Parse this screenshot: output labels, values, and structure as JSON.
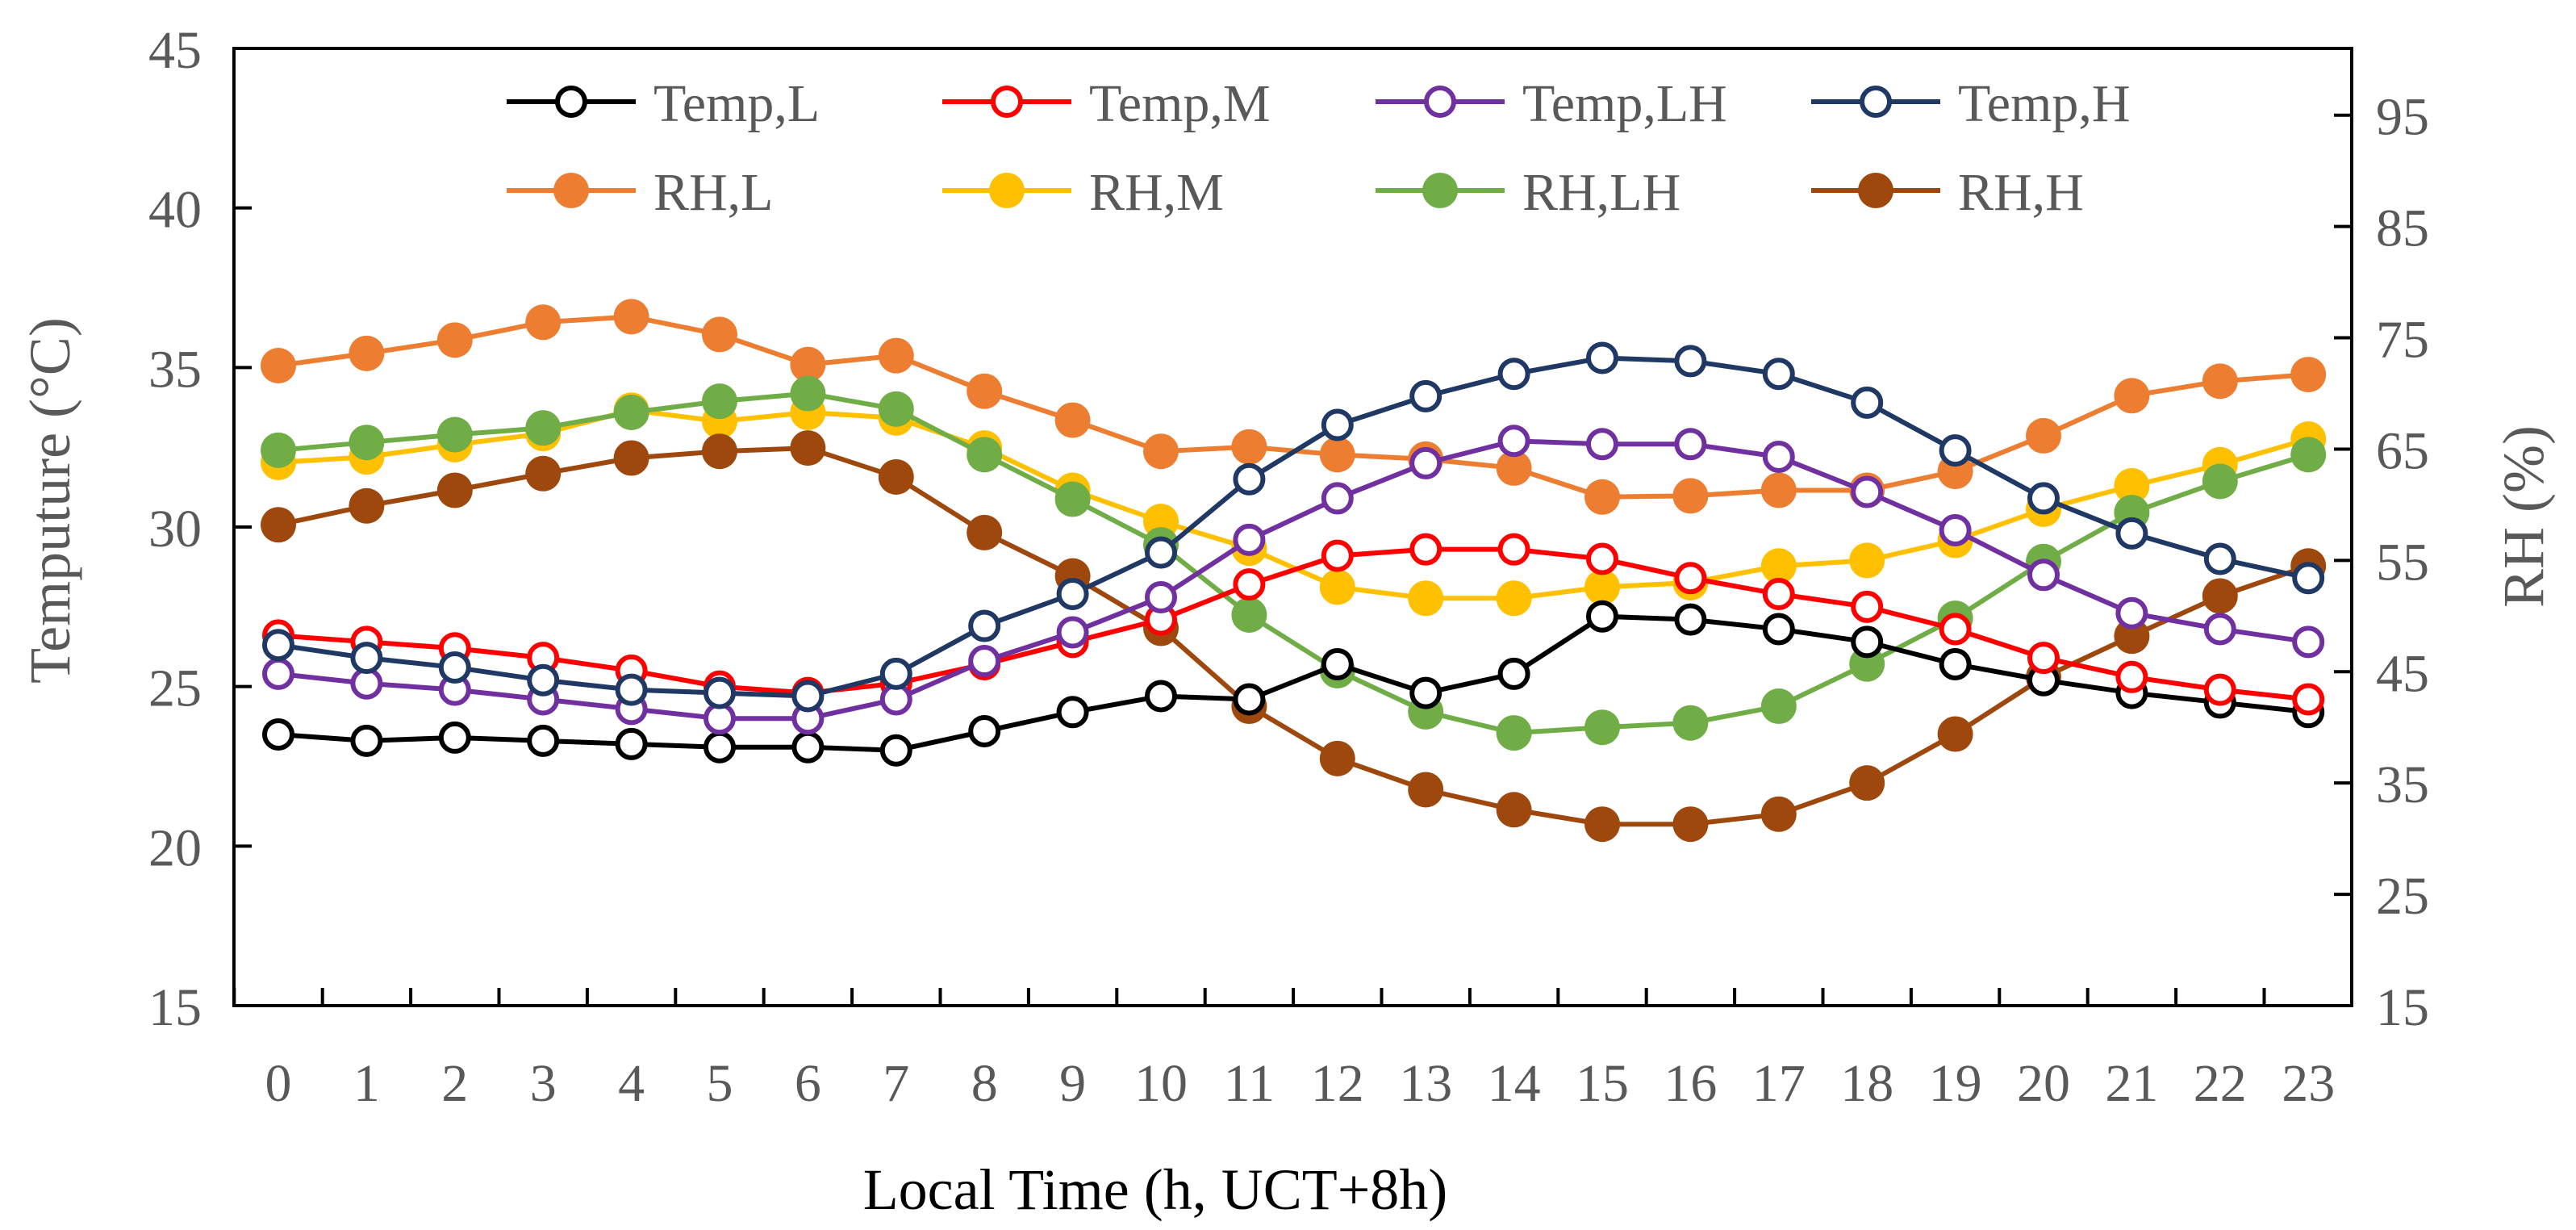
{
  "chart_data": {
    "type": "line",
    "title": "",
    "xlabel": "Local Time (h, UCT+8h)",
    "ylabel": "Temputure (°C)",
    "y2label": "RH (%)",
    "ylim": [
      15,
      45
    ],
    "y2lim": [
      15,
      101
    ],
    "yticks": [
      "15",
      "20",
      "25",
      "30",
      "35",
      "40",
      "45"
    ],
    "y2ticks": [
      "15",
      "25",
      "35",
      "45",
      "55",
      "65",
      "75",
      "85",
      "95"
    ],
    "x": [
      "0",
      "1",
      "2",
      "3",
      "4",
      "5",
      "6",
      "7",
      "8",
      "9",
      "10",
      "11",
      "12",
      "13",
      "14",
      "15",
      "16",
      "17",
      "18",
      "19",
      "20",
      "21",
      "22",
      "23"
    ],
    "legend_position": "top",
    "grid": false,
    "series": [
      {
        "name": "Temp,L",
        "axis": "left",
        "color": "#000000",
        "marker": "open",
        "values": [
          23.5,
          23.3,
          23.4,
          23.3,
          23.2,
          23.1,
          23.1,
          23.0,
          23.6,
          24.2,
          24.7,
          24.6,
          25.7,
          24.8,
          25.4,
          27.2,
          27.1,
          26.8,
          26.4,
          25.7,
          25.2,
          24.8,
          24.5,
          24.2
        ]
      },
      {
        "name": "Temp,M",
        "axis": "left",
        "color": "#ff0000",
        "marker": "open",
        "values": [
          26.6,
          26.4,
          26.2,
          25.9,
          25.5,
          25.0,
          24.8,
          25.1,
          25.7,
          26.4,
          27.1,
          28.2,
          29.1,
          29.3,
          29.3,
          29.0,
          28.4,
          27.9,
          27.5,
          26.8,
          25.9,
          25.3,
          24.9,
          24.6
        ]
      },
      {
        "name": "Temp,LH",
        "axis": "left",
        "color": "#7030a0",
        "marker": "open",
        "values": [
          25.4,
          25.1,
          24.9,
          24.6,
          24.3,
          24.0,
          24.0,
          24.6,
          25.8,
          26.7,
          27.8,
          29.6,
          30.9,
          32.0,
          32.7,
          32.6,
          32.6,
          32.2,
          31.1,
          29.9,
          28.5,
          27.3,
          26.8,
          26.4
        ]
      },
      {
        "name": "Temp,H",
        "axis": "left",
        "color": "#1f3864",
        "marker": "open",
        "values": [
          26.3,
          25.9,
          25.6,
          25.2,
          24.9,
          24.8,
          24.7,
          25.4,
          26.9,
          27.9,
          29.2,
          31.5,
          33.2,
          34.1,
          34.8,
          35.3,
          35.2,
          34.8,
          33.9,
          32.4,
          30.9,
          29.8,
          29.0,
          28.4
        ]
      },
      {
        "name": "RH,L",
        "axis": "right",
        "color": "#ed7d31",
        "marker": "filled",
        "values": [
          72.5,
          73.6,
          74.8,
          76.4,
          76.9,
          75.3,
          72.6,
          73.4,
          70.2,
          67.6,
          64.8,
          65.2,
          64.5,
          64.1,
          63.3,
          60.7,
          60.8,
          61.3,
          61.3,
          63.0,
          66.2,
          69.8,
          71.1,
          71.7
        ]
      },
      {
        "name": "RH,M",
        "axis": "right",
        "color": "#ffc000",
        "marker": "filled",
        "values": [
          63.8,
          64.3,
          65.4,
          66.4,
          68.5,
          67.5,
          68.3,
          67.8,
          65.1,
          61.3,
          58.5,
          56.1,
          52.6,
          51.6,
          51.6,
          52.6,
          53.0,
          54.5,
          55.0,
          56.8,
          59.6,
          61.7,
          63.6,
          65.9
        ]
      },
      {
        "name": "RH,LH",
        "axis": "right",
        "color": "#70ad47",
        "marker": "filled",
        "values": [
          64.9,
          65.6,
          66.3,
          66.9,
          68.3,
          69.3,
          70.0,
          68.6,
          64.5,
          60.5,
          56.4,
          50.1,
          45.1,
          41.4,
          39.5,
          40.0,
          40.4,
          41.9,
          45.7,
          49.8,
          54.9,
          59.3,
          62.1,
          64.5
        ]
      },
      {
        "name": "RH,H",
        "axis": "right",
        "color": "#9e480e",
        "marker": "filled",
        "values": [
          58.2,
          59.9,
          61.3,
          62.8,
          64.2,
          64.8,
          65.1,
          62.5,
          57.5,
          53.6,
          48.9,
          41.9,
          37.2,
          34.4,
          32.6,
          31.3,
          31.3,
          32.2,
          35.0,
          39.4,
          44.5,
          48.2,
          51.8,
          54.5
        ]
      }
    ]
  }
}
